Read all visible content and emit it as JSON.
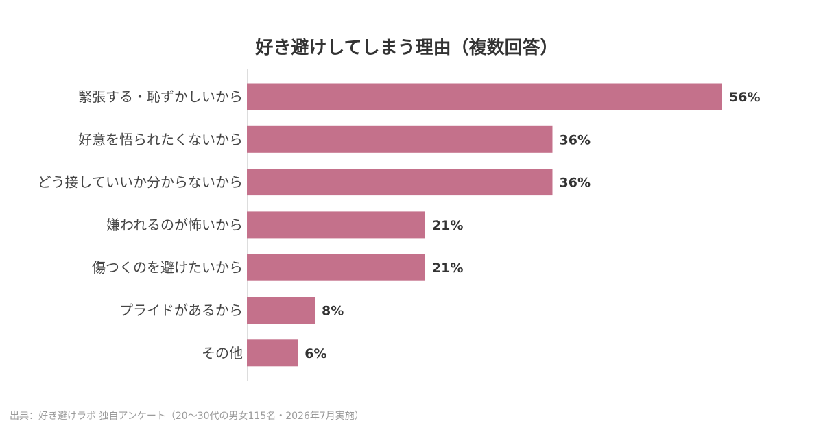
{
  "chart_data": {
    "type": "bar",
    "orientation": "horizontal",
    "title": "好き避けしてしまう理由（複数回答）",
    "categories": [
      "緊張する・恥ずかしいから",
      "好意を悟られたくないから",
      "どう接していいか分からないから",
      "嫌われるのが怖いから",
      "傷つくのを避けたいから",
      "プライドがあるから",
      "その他"
    ],
    "values": [
      56,
      36,
      36,
      21,
      21,
      8,
      6
    ],
    "value_labels": [
      "56%",
      "36%",
      "36%",
      "21%",
      "21%",
      "8%",
      "6%"
    ],
    "unit": "%",
    "xlim": [
      0,
      60
    ],
    "grid": false,
    "legend": "none",
    "bar_color": "#c4718b"
  },
  "source": "出典：好き避けラボ 独自アンケート（20〜30代の男女115名・2026年7月実施）"
}
